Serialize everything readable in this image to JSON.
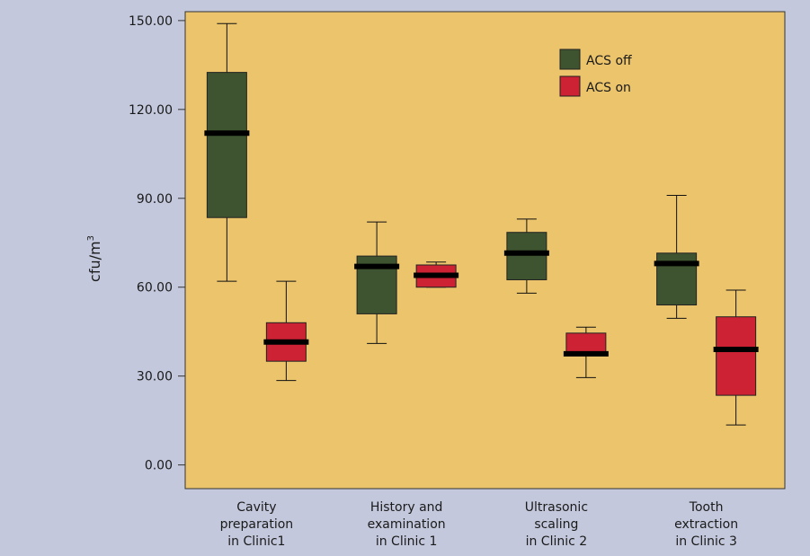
{
  "chart_data": {
    "type": "boxplot",
    "ylabel": "cfu/m",
    "ylabel_superscript": "3",
    "ylim": [
      -8,
      153
    ],
    "yticks": [
      {
        "value": 0,
        "label": "0.00"
      },
      {
        "value": 30,
        "label": "30.00"
      },
      {
        "value": 60,
        "label": "60.00"
      },
      {
        "value": 90,
        "label": "90.00"
      },
      {
        "value": 120,
        "label": "120.00"
      },
      {
        "value": 150,
        "label": "150.00"
      }
    ],
    "categories": [
      {
        "lines": [
          "Cavity",
          "preparation",
          "in Clinic1"
        ]
      },
      {
        "lines": [
          "History and",
          "examination",
          "in Clinic 1"
        ]
      },
      {
        "lines": [
          "Ultrasonic",
          "scaling",
          "in Clinic 2"
        ]
      },
      {
        "lines": [
          "Tooth",
          "extraction",
          "in Clinic 3"
        ]
      }
    ],
    "series": [
      {
        "name": "ACS off",
        "color": "#3e5430",
        "boxes": [
          {
            "min": 62,
            "q1": 83.5,
            "median": 112,
            "q3": 132.5,
            "max": 149
          },
          {
            "min": 41,
            "q1": 51,
            "median": 67,
            "q3": 70.5,
            "max": 82
          },
          {
            "min": 58,
            "q1": 62.5,
            "median": 71.5,
            "q3": 78.5,
            "max": 83
          },
          {
            "min": 49.5,
            "q1": 54,
            "median": 68,
            "q3": 71.5,
            "max": 91
          }
        ]
      },
      {
        "name": "ACS on",
        "color": "#cc2233",
        "boxes": [
          {
            "min": 28.5,
            "q1": 35,
            "median": 41.5,
            "q3": 48,
            "max": 62
          },
          {
            "min": 60,
            "q1": 60,
            "median": 64,
            "q3": 67.5,
            "max": 68.5
          },
          {
            "min": 29.5,
            "q1": 37,
            "median": 37.5,
            "q3": 44.5,
            "max": 46.5
          },
          {
            "min": 13.5,
            "q1": 23.5,
            "median": 39,
            "q3": 50,
            "max": 59
          }
        ]
      }
    ],
    "legend_position": "top-right"
  },
  "colors": {
    "plot_background": "#ebc46c",
    "page_background": "#c3c8dc",
    "median": "#000000"
  }
}
